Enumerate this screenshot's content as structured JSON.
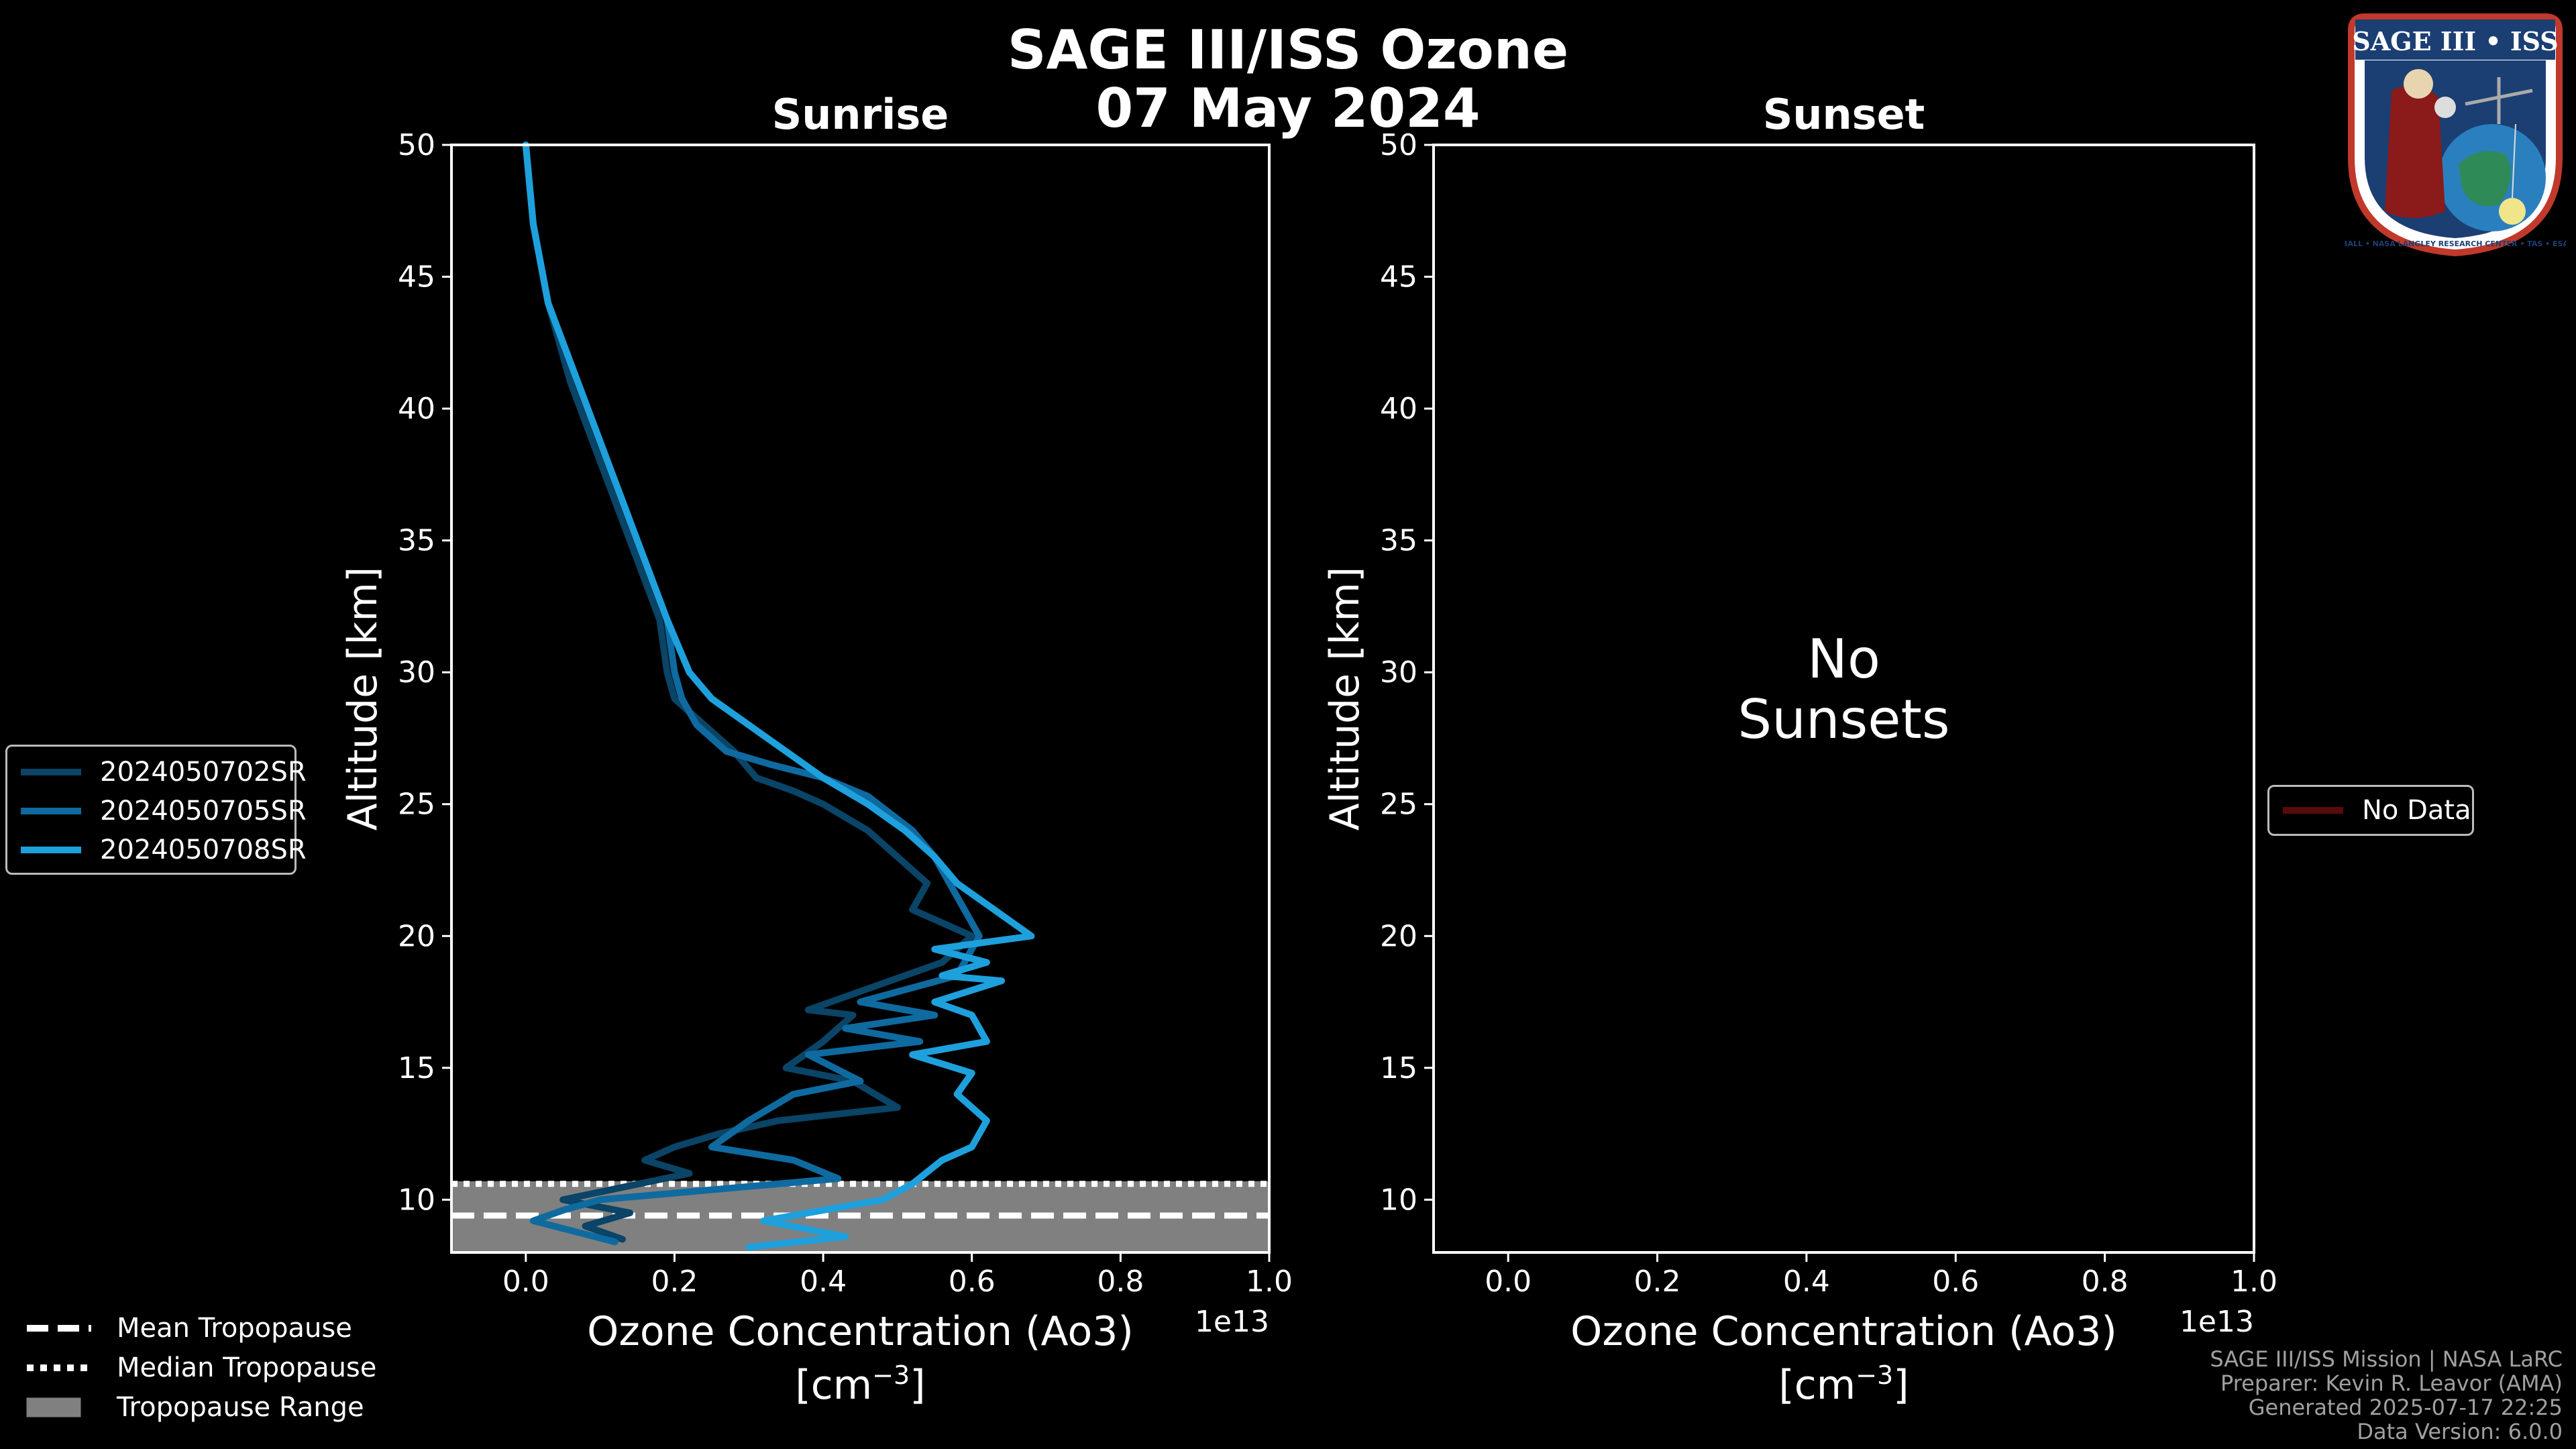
{
  "title_line1": "SAGE III/ISS Ozone",
  "title_line2": "07 May 2024",
  "badge": {
    "text": "SAGE III • ISS",
    "ring_text": "BALL • NASA LANGLEY RESEARCH CENTER • TAS • ESA",
    "icon": "mission-patch-icon"
  },
  "legend_left": [
    {
      "label": "2024050702SR",
      "color": "#0a4466"
    },
    {
      "label": "2024050705SR",
      "color": "#0f6aa0"
    },
    {
      "label": "2024050708SR",
      "color": "#1ea0dc"
    }
  ],
  "legend_right": {
    "label": "No Data",
    "color": "#5a0a0a"
  },
  "tropo_legend": [
    {
      "label": "Mean Tropopause",
      "style": "dashed"
    },
    {
      "label": "Median Tropopause",
      "style": "dotted"
    },
    {
      "label": "Tropopause Range",
      "style": "patch"
    }
  ],
  "footer": [
    "SAGE III/ISS Mission | NASA LaRC",
    "Preparer: Kevin R. Leavor (AMA)",
    "Generated 2025-07-17 22:25",
    "Data Version: 6.0.0"
  ],
  "chart_data": [
    {
      "type": "line",
      "title": "Sunrise",
      "xlabel": "Ozone Concentration (Ao3)",
      "xunits": "[cm",
      "xunits_exp": "−3",
      "xunits_close": "]",
      "ylabel": "Altitude [km]",
      "offset_label": "1e13",
      "xlim": [
        -0.1,
        1.0
      ],
      "ylim": [
        8,
        50
      ],
      "xticks": [
        0.0,
        0.2,
        0.4,
        0.6,
        0.8,
        1.0
      ],
      "xtick_labels": [
        "0.0",
        "0.2",
        "0.4",
        "0.6",
        "0.8",
        "1.0"
      ],
      "yticks": [
        10,
        15,
        20,
        25,
        30,
        35,
        40,
        45,
        50
      ],
      "tropopause": {
        "mean": 9.4,
        "median": 10.6,
        "range": [
          8.0,
          10.7
        ]
      },
      "series": [
        {
          "name": "2024050702SR",
          "color": "#0a4466",
          "x": [
            0.0,
            0.01,
            0.03,
            0.06,
            0.1,
            0.14,
            0.18,
            0.19,
            0.2,
            0.24,
            0.28,
            0.31,
            0.36,
            0.4,
            0.46,
            0.5,
            0.54,
            0.52,
            0.6,
            0.56,
            0.38,
            0.44,
            0.4,
            0.35,
            0.44,
            0.5,
            0.34,
            0.26,
            0.2,
            0.16,
            0.22,
            0.05,
            0.14,
            0.08,
            0.13
          ],
          "y": [
            50,
            47,
            44,
            41,
            38,
            35,
            32,
            30,
            29,
            28,
            27,
            26,
            25.5,
            25,
            24,
            23,
            22,
            21,
            20,
            19,
            17.2,
            17,
            16,
            15,
            14.5,
            13.5,
            13,
            12.5,
            12,
            11.5,
            11,
            10,
            9.5,
            9,
            8.5
          ]
        },
        {
          "name": "2024050705SR",
          "color": "#0f6aa0",
          "x": [
            0.0,
            0.01,
            0.03,
            0.07,
            0.11,
            0.15,
            0.19,
            0.2,
            0.21,
            0.23,
            0.27,
            0.33,
            0.4,
            0.46,
            0.52,
            0.55,
            0.61,
            0.6,
            0.58,
            0.45,
            0.55,
            0.43,
            0.53,
            0.38,
            0.45,
            0.36,
            0.3,
            0.25,
            0.36,
            0.42,
            0.3,
            0.1,
            0.05,
            0.01,
            0.12
          ],
          "y": [
            50,
            47,
            44,
            41,
            38,
            35,
            32,
            30,
            29,
            28,
            27,
            26.5,
            26,
            25.3,
            24,
            23,
            20,
            19.5,
            18.5,
            17.5,
            17,
            16.5,
            16,
            15.5,
            14.5,
            14,
            13,
            12,
            11.5,
            10.8,
            10.5,
            10,
            9.6,
            9.2,
            8.4
          ]
        },
        {
          "name": "2024050708SR",
          "color": "#1ea0dc",
          "x": [
            0.0,
            0.01,
            0.03,
            0.07,
            0.11,
            0.15,
            0.19,
            0.22,
            0.25,
            0.3,
            0.35,
            0.4,
            0.46,
            0.51,
            0.55,
            0.58,
            0.68,
            0.55,
            0.62,
            0.56,
            0.64,
            0.55,
            0.6,
            0.62,
            0.52,
            0.6,
            0.58,
            0.62,
            0.6,
            0.56,
            0.52,
            0.48,
            0.4,
            0.32,
            0.43,
            0.3
          ],
          "y": [
            50,
            47,
            44,
            41,
            38,
            35,
            32,
            30,
            29,
            28,
            27,
            26,
            25,
            24,
            23,
            22,
            20,
            19.5,
            19,
            18.5,
            18.3,
            17.5,
            17,
            16,
            15.5,
            14.8,
            14,
            13,
            12,
            11.5,
            10.6,
            10,
            9.6,
            9.2,
            8.6,
            8.2
          ]
        }
      ]
    },
    {
      "type": "line",
      "title": "Sunset",
      "xlabel": "Ozone Concentration (Ao3)",
      "xunits": "[cm",
      "xunits_exp": "−3",
      "xunits_close": "]",
      "ylabel": "Altitude [km]",
      "offset_label": "1e13",
      "xlim": [
        -0.1,
        1.0
      ],
      "ylim": [
        8,
        50
      ],
      "xticks": [
        0.0,
        0.2,
        0.4,
        0.6,
        0.8,
        1.0
      ],
      "xtick_labels": [
        "0.0",
        "0.2",
        "0.4",
        "0.6",
        "0.8",
        "1.0"
      ],
      "yticks": [
        10,
        15,
        20,
        25,
        30,
        35,
        40,
        45,
        50
      ],
      "annotation": [
        "No",
        "Sunsets"
      ],
      "series": []
    }
  ]
}
